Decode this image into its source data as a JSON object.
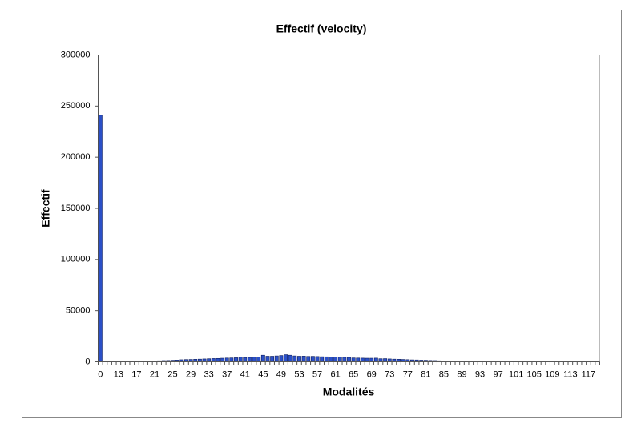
{
  "chart_data": {
    "type": "bar",
    "title": "Effectif (velocity)",
    "x_label": "Modalités",
    "y_label": "Effectif",
    "categories": [
      "0",
      null,
      null,
      null,
      "13",
      null,
      null,
      null,
      "17",
      null,
      null,
      null,
      "21",
      null,
      null,
      null,
      "25",
      null,
      null,
      null,
      "29",
      null,
      null,
      null,
      "33",
      null,
      null,
      null,
      "37",
      null,
      null,
      null,
      "41",
      null,
      null,
      null,
      "45",
      null,
      null,
      null,
      "49",
      null,
      null,
      null,
      "53",
      null,
      null,
      null,
      "57",
      null,
      null,
      null,
      "61",
      null,
      null,
      null,
      "65",
      null,
      null,
      null,
      "69",
      null,
      null,
      null,
      "73",
      null,
      null,
      null,
      "77",
      null,
      null,
      null,
      "81",
      null,
      null,
      null,
      "85",
      null,
      null,
      null,
      "89",
      null,
      null,
      null,
      "93",
      null,
      null,
      null,
      "97",
      null,
      null,
      null,
      "101",
      null,
      null,
      null,
      "105",
      null,
      null,
      null,
      "109",
      null,
      null,
      null,
      "113",
      null,
      null,
      null,
      "117",
      null,
      null
    ],
    "values": [
      241000,
      100,
      150,
      200,
      250,
      300,
      350,
      400,
      450,
      500,
      600,
      700,
      900,
      1000,
      1200,
      1300,
      1500,
      1700,
      2000,
      2200,
      2300,
      2500,
      2600,
      2800,
      3000,
      3200,
      3300,
      3500,
      3700,
      3800,
      4000,
      4500,
      4200,
      4300,
      4500,
      4800,
      6500,
      5500,
      5500,
      5800,
      6200,
      7000,
      6500,
      5800,
      5500,
      5600,
      5300,
      5400,
      5200,
      5000,
      4900,
      4800,
      4600,
      4500,
      4400,
      4300,
      3800,
      3700,
      3600,
      3500,
      3500,
      3600,
      3000,
      3100,
      2800,
      2600,
      2500,
      2300,
      2100,
      1900,
      1800,
      1600,
      1500,
      1300,
      1200,
      1000,
      900,
      800,
      700,
      600,
      500,
      450,
      400,
      350,
      300,
      280,
      260,
      240,
      220,
      200,
      190,
      180,
      170,
      160,
      150,
      140,
      130,
      120,
      110,
      100,
      90,
      80,
      70,
      60,
      50,
      45,
      40,
      35,
      30,
      25,
      20
    ],
    "color": "#2b50c8",
    "ylim": [
      0,
      300000
    ],
    "yticks": [
      0,
      50000,
      100000,
      150000,
      200000,
      250000,
      300000
    ],
    "grid": false
  }
}
